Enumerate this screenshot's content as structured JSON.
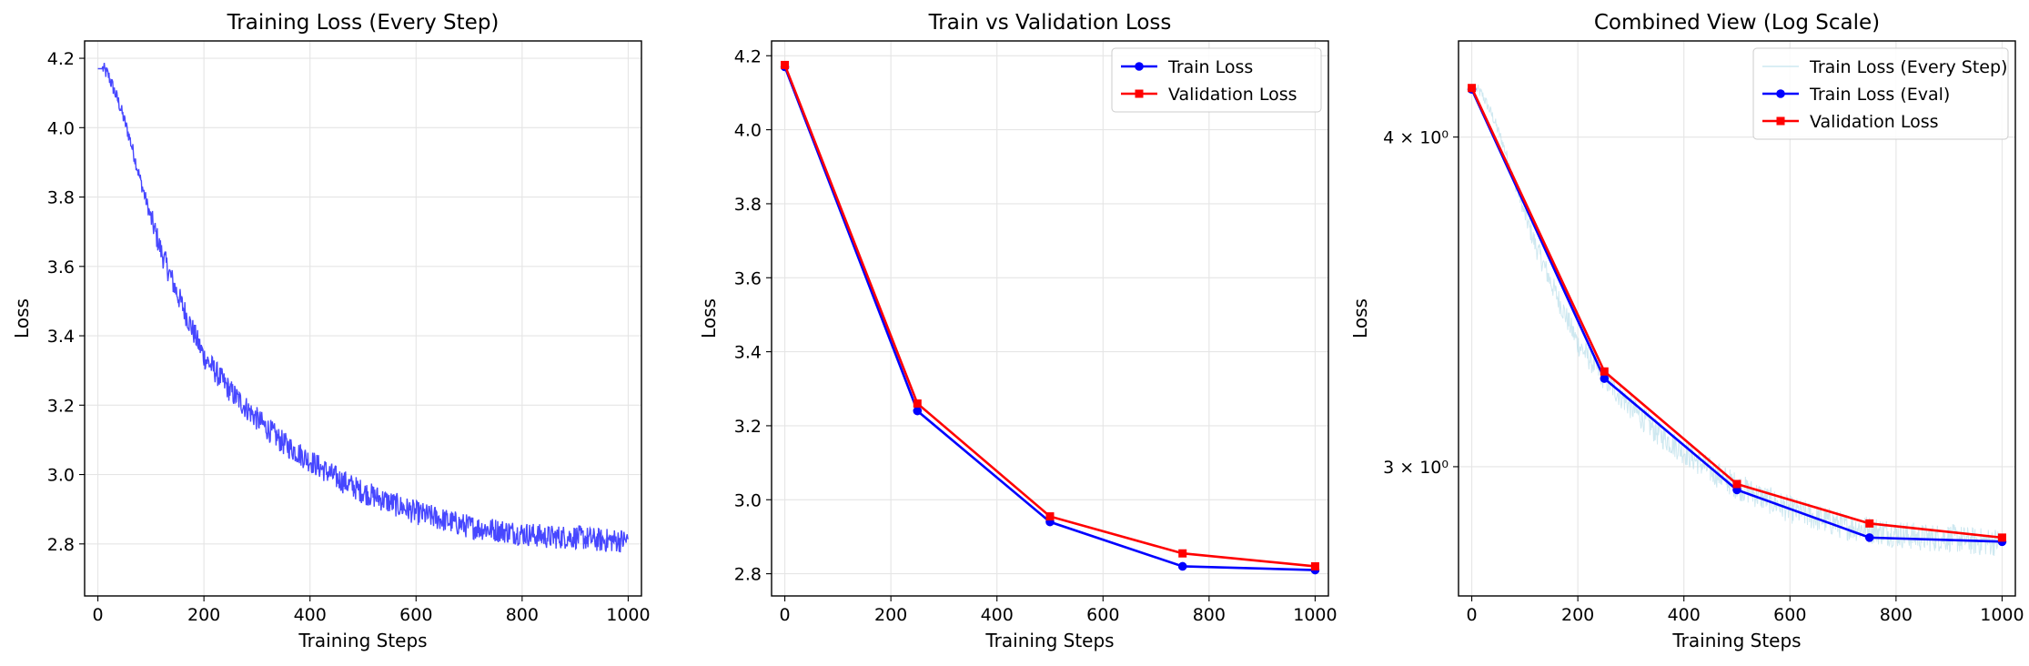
{
  "chart_data": [
    {
      "type": "line",
      "title": "Training Loss (Every Step)",
      "xlabel": "Training Steps",
      "ylabel": "Loss",
      "xlim": [
        -25,
        1025
      ],
      "ylim": [
        2.65,
        4.25
      ],
      "xticks": [
        0,
        200,
        400,
        600,
        800,
        1000
      ],
      "yticks": [
        2.8,
        3.0,
        3.2,
        3.4,
        3.6,
        3.8,
        4.0,
        4.2
      ],
      "grid": true,
      "series": [
        {
          "color": "#0000ff",
          "style": "noisy-every-step",
          "x": [
            0,
            10,
            20,
            40,
            60,
            80,
            100,
            120,
            150,
            200,
            250,
            300,
            350,
            400,
            450,
            500,
            550,
            600,
            650,
            700,
            750,
            800,
            850,
            900,
            950,
            1000
          ],
          "values": [
            4.17,
            4.17,
            4.15,
            4.07,
            3.97,
            3.85,
            3.74,
            3.64,
            3.52,
            3.34,
            3.24,
            3.16,
            3.09,
            3.04,
            2.99,
            2.95,
            2.92,
            2.89,
            2.87,
            2.85,
            2.84,
            2.83,
            2.82,
            2.82,
            2.81,
            2.81
          ],
          "noise": 0.035
        }
      ]
    },
    {
      "type": "line",
      "title": "Train vs Validation Loss",
      "xlabel": "Training Steps",
      "ylabel": "Loss",
      "xlim": [
        -25,
        1025
      ],
      "ylim": [
        2.74,
        4.24
      ],
      "xticks": [
        0,
        200,
        400,
        600,
        800,
        1000
      ],
      "yticks": [
        2.8,
        3.0,
        3.2,
        3.4,
        3.6,
        3.8,
        4.0,
        4.2
      ],
      "grid": true,
      "legend": "top-right",
      "series": [
        {
          "name": "Train Loss",
          "color": "#0000ff",
          "marker": "circle",
          "x": [
            0,
            250,
            500,
            750,
            1000
          ],
          "values": [
            4.17,
            3.24,
            2.94,
            2.82,
            2.81
          ]
        },
        {
          "name": "Validation Loss",
          "color": "#ff0000",
          "marker": "square",
          "x": [
            0,
            250,
            500,
            750,
            1000
          ],
          "values": [
            4.175,
            3.26,
            2.955,
            2.855,
            2.82
          ]
        }
      ]
    },
    {
      "type": "line",
      "title": "Combined View (Log Scale)",
      "xlabel": "Training Steps",
      "ylabel": "Loss",
      "yscale": "log",
      "xlim": [
        -25,
        1025
      ],
      "ylim": [
        2.68,
        4.35
      ],
      "xticks": [
        0,
        200,
        400,
        600,
        800,
        1000
      ],
      "yticks": [
        3,
        4
      ],
      "ytick_labels": [
        "3 × 10⁰",
        "4 × 10⁰"
      ],
      "grid": true,
      "legend": "top-right",
      "series": [
        {
          "name": "Train Loss (Every Step)",
          "color": "#add8e6",
          "style": "noisy-every-step",
          "x": [
            0,
            10,
            20,
            40,
            60,
            80,
            100,
            120,
            150,
            200,
            250,
            300,
            350,
            400,
            450,
            500,
            550,
            600,
            650,
            700,
            750,
            800,
            850,
            900,
            950,
            1000
          ],
          "values": [
            4.17,
            4.17,
            4.15,
            4.07,
            3.97,
            3.85,
            3.74,
            3.64,
            3.52,
            3.34,
            3.24,
            3.16,
            3.09,
            3.04,
            2.99,
            2.95,
            2.92,
            2.89,
            2.87,
            2.85,
            2.84,
            2.83,
            2.82,
            2.82,
            2.81,
            2.81
          ],
          "noise": 0.035
        },
        {
          "name": "Train Loss (Eval)",
          "color": "#0000ff",
          "marker": "circle",
          "x": [
            0,
            250,
            500,
            750,
            1000
          ],
          "values": [
            4.17,
            3.24,
            2.94,
            2.82,
            2.81
          ]
        },
        {
          "name": "Validation Loss",
          "color": "#ff0000",
          "marker": "square",
          "x": [
            0,
            250,
            500,
            750,
            1000
          ],
          "values": [
            4.175,
            3.26,
            2.955,
            2.855,
            2.82
          ]
        }
      ]
    }
  ]
}
